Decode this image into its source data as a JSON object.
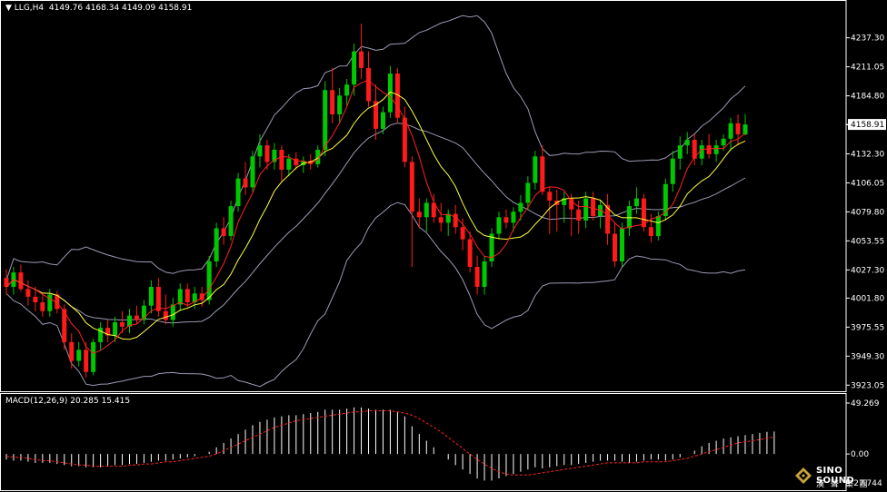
{
  "header": {
    "arrow": "▼",
    "symbol": "LLG,H4",
    "ohlc": "4149.76 4168.34 4149.09 4158.91"
  },
  "macd": {
    "label": "MACD(12,26,9) 20.285 15.415",
    "ticks": [
      "49.269",
      "0.00",
      "-27.744"
    ]
  },
  "logo": {
    "line1": "SINO SOUND",
    "line2": "漢 聲 集 團"
  },
  "colors": {
    "background": "#000000",
    "bull": "#00c800",
    "bear": "#ff1a1a",
    "ma_fast": "#ff2020",
    "ma_slow": "#ffff40",
    "bands": "#9a9ab4",
    "axis_text": "#ffffff",
    "price_tag_bg": "#ffffff",
    "macd_hist": "#ffffff",
    "macd_signal": "#ff2020"
  },
  "chart_data": [
    {
      "type": "candlestick",
      "symbol": "LLG",
      "timeframe": "H4",
      "last_price": "4158.91",
      "ylim": [
        3920,
        4260
      ],
      "y_ticks": [
        "4237.30",
        "4211.05",
        "4184.80",
        "4158.55",
        "4132.30",
        "4106.05",
        "4079.80",
        "4053.55",
        "4027.30",
        "4001.80",
        "3975.55",
        "3949.30",
        "3923.05"
      ],
      "candles": [
        [
          4020,
          4028,
          4005,
          4012
        ],
        [
          4012,
          4030,
          4005,
          4025
        ],
        [
          4025,
          4032,
          4008,
          4010
        ],
        [
          4010,
          4018,
          3995,
          4003
        ],
        [
          4003,
          4012,
          3990,
          3998
        ],
        [
          3998,
          4005,
          3985,
          3990
        ],
        [
          3990,
          4010,
          3985,
          4005
        ],
        [
          4005,
          4008,
          3988,
          3992
        ],
        [
          3992,
          3996,
          3955,
          3962
        ],
        [
          3962,
          3970,
          3938,
          3945
        ],
        [
          3945,
          3962,
          3940,
          3955
        ],
        [
          3955,
          3962,
          3930,
          3935
        ],
        [
          3935,
          3965,
          3932,
          3962
        ],
        [
          3962,
          3980,
          3955,
          3975
        ],
        [
          3975,
          3982,
          3962,
          3968
        ],
        [
          3968,
          3985,
          3962,
          3980
        ],
        [
          3980,
          3990,
          3970,
          3976
        ],
        [
          3976,
          3992,
          3970,
          3986
        ],
        [
          3986,
          3995,
          3978,
          3982
        ],
        [
          3982,
          4000,
          3978,
          3995
        ],
        [
          3995,
          4018,
          3988,
          4012
        ],
        [
          4012,
          4020,
          3985,
          3990
        ],
        [
          3990,
          4005,
          3978,
          3982
        ],
        [
          3982,
          4002,
          3976,
          3996
        ],
        [
          3996,
          4015,
          3990,
          4010
        ],
        [
          4010,
          4015,
          3994,
          3998
        ],
        [
          3998,
          4012,
          3992,
          4006
        ],
        [
          4006,
          4012,
          3994,
          4000
        ],
        [
          4000,
          4040,
          3996,
          4035
        ],
        [
          4035,
          4070,
          4030,
          4065
        ],
        [
          4065,
          4075,
          4050,
          4058
        ],
        [
          4058,
          4090,
          4054,
          4085
        ],
        [
          4085,
          4115,
          4080,
          4110
        ],
        [
          4110,
          4125,
          4095,
          4102
        ],
        [
          4102,
          4135,
          4098,
          4130
        ],
        [
          4130,
          4150,
          4120,
          4140
        ],
        [
          4140,
          4145,
          4118,
          4125
        ],
        [
          4125,
          4142,
          4118,
          4136
        ],
        [
          4136,
          4140,
          4108,
          4118
        ],
        [
          4118,
          4132,
          4112,
          4128
        ],
        [
          4128,
          4134,
          4118,
          4122
        ],
        [
          4122,
          4130,
          4115,
          4126
        ],
        [
          4126,
          4132,
          4118,
          4123
        ],
        [
          4123,
          4140,
          4120,
          4136
        ],
        [
          4136,
          4198,
          4130,
          4190
        ],
        [
          4190,
          4210,
          4160,
          4168
        ],
        [
          4168,
          4192,
          4160,
          4185
        ],
        [
          4185,
          4200,
          4176,
          4195
        ],
        [
          4195,
          4232,
          4185,
          4225
        ],
        [
          4225,
          4250,
          4200,
          4210
        ],
        [
          4210,
          4225,
          4175,
          4180
        ],
        [
          4180,
          4195,
          4145,
          4155
        ],
        [
          4155,
          4175,
          4150,
          4170
        ],
        [
          4170,
          4212,
          4165,
          4205
        ],
        [
          4205,
          4210,
          4160,
          4165
        ],
        [
          4165,
          4175,
          4120,
          4125
        ],
        [
          4125,
          4130,
          4030,
          4080
        ],
        [
          4080,
          4092,
          4065,
          4075
        ],
        [
          4075,
          4092,
          4062,
          4088
        ],
        [
          4088,
          4096,
          4070,
          4075
        ],
        [
          4075,
          4088,
          4062,
          4070
        ],
        [
          4070,
          4082,
          4058,
          4078
        ],
        [
          4078,
          4086,
          4060,
          4066
        ],
        [
          4066,
          4074,
          4045,
          4055
        ],
        [
          4055,
          4062,
          4025,
          4030
        ],
        [
          4030,
          4040,
          4005,
          4012
        ],
        [
          4012,
          4040,
          4005,
          4035
        ],
        [
          4035,
          4065,
          4030,
          4060
        ],
        [
          4060,
          4080,
          4055,
          4075
        ],
        [
          4075,
          4082,
          4065,
          4070
        ],
        [
          4070,
          4084,
          4062,
          4080
        ],
        [
          4080,
          4095,
          4072,
          4088
        ],
        [
          4088,
          4112,
          4082,
          4106
        ],
        [
          4106,
          4135,
          4100,
          4130
        ],
        [
          4130,
          4140,
          4095,
          4098
        ],
        [
          4098,
          4102,
          4060,
          4090
        ],
        [
          4090,
          4100,
          4062,
          4086
        ],
        [
          4086,
          4098,
          4070,
          4092
        ],
        [
          4092,
          4096,
          4058,
          4082
        ],
        [
          4082,
          4090,
          4060,
          4072
        ],
        [
          4072,
          4098,
          4065,
          4092
        ],
        [
          4092,
          4098,
          4072,
          4076
        ],
        [
          4076,
          4090,
          4065,
          4086
        ],
        [
          4086,
          4096,
          4050,
          4060
        ],
        [
          4060,
          4070,
          4030,
          4035
        ],
        [
          4035,
          4070,
          4030,
          4065
        ],
        [
          4065,
          4090,
          4058,
          4085
        ],
        [
          4085,
          4102,
          4078,
          4092
        ],
        [
          4092,
          4096,
          4062,
          4066
        ],
        [
          4066,
          4078,
          4052,
          4058
        ],
        [
          4058,
          4080,
          4054,
          4076
        ],
        [
          4076,
          4110,
          4072,
          4105
        ],
        [
          4105,
          4135,
          4098,
          4128
        ],
        [
          4128,
          4148,
          4118,
          4140
        ],
        [
          4140,
          4152,
          4132,
          4145
        ],
        [
          4145,
          4150,
          4122,
          4128
        ],
        [
          4128,
          4145,
          4122,
          4140
        ],
        [
          4140,
          4150,
          4128,
          4132
        ],
        [
          4132,
          4145,
          4125,
          4140
        ],
        [
          4140,
          4150,
          4135,
          4146
        ],
        [
          4146,
          4165,
          4135,
          4160
        ],
        [
          4160,
          4168,
          4140,
          4150
        ],
        [
          4149.76,
          4168.34,
          4149.09,
          4158.91
        ]
      ]
    },
    {
      "type": "macd",
      "params": "12,26,9",
      "macd_value": 20.285,
      "signal_value": 15.415,
      "ylim": [
        -27.744,
        49.269
      ],
      "histogram": [
        -5,
        -6,
        -6,
        -7,
        -8,
        -8,
        -8,
        -9,
        -10,
        -11,
        -11,
        -12,
        -12,
        -12,
        -11,
        -10,
        -10,
        -9,
        -9,
        -8,
        -7,
        -6,
        -6,
        -5,
        -4,
        -3,
        -2,
        0,
        2,
        6,
        10,
        14,
        18,
        22,
        26,
        29,
        31,
        33,
        34,
        35,
        35,
        36,
        37,
        38,
        40,
        40,
        40,
        41,
        42,
        42,
        41,
        40,
        40,
        40,
        38,
        34,
        25,
        18,
        12,
        6,
        0,
        -5,
        -10,
        -14,
        -18,
        -22,
        -24,
        -24,
        -22,
        -20,
        -18,
        -16,
        -14,
        -12,
        -13,
        -12,
        -11,
        -10,
        -10,
        -9,
        -8,
        -7,
        -6,
        -6,
        -6,
        -7,
        -8,
        -7,
        -6,
        -5,
        -5,
        -6,
        -5,
        -3,
        0,
        3,
        7,
        10,
        12,
        14,
        15,
        16,
        17,
        18,
        19,
        20,
        20.285
      ],
      "signal": [
        -2,
        -3,
        -3,
        -4,
        -5,
        -6,
        -6,
        -7,
        -8,
        -9,
        -10,
        -10,
        -11,
        -11,
        -11,
        -11,
        -11,
        -10,
        -10,
        -9,
        -9,
        -8,
        -7,
        -7,
        -6,
        -5,
        -4,
        -3,
        -2,
        0,
        3,
        6,
        9,
        12,
        15,
        18,
        21,
        24,
        26,
        28,
        30,
        31,
        32,
        33,
        34,
        35,
        36,
        37,
        38,
        38,
        39,
        39,
        39,
        39,
        38,
        37,
        35,
        32,
        28,
        24,
        20,
        15,
        10,
        5,
        0,
        -5,
        -9,
        -13,
        -16,
        -18,
        -19,
        -19,
        -19,
        -18,
        -17,
        -16,
        -15,
        -14,
        -13,
        -12,
        -11,
        -10,
        -9,
        -8,
        -8,
        -8,
        -8,
        -8,
        -7,
        -7,
        -7,
        -7,
        -6,
        -5,
        -4,
        -2,
        0,
        2,
        4,
        6,
        8,
        10,
        11,
        12,
        13,
        14,
        15.415
      ]
    }
  ]
}
